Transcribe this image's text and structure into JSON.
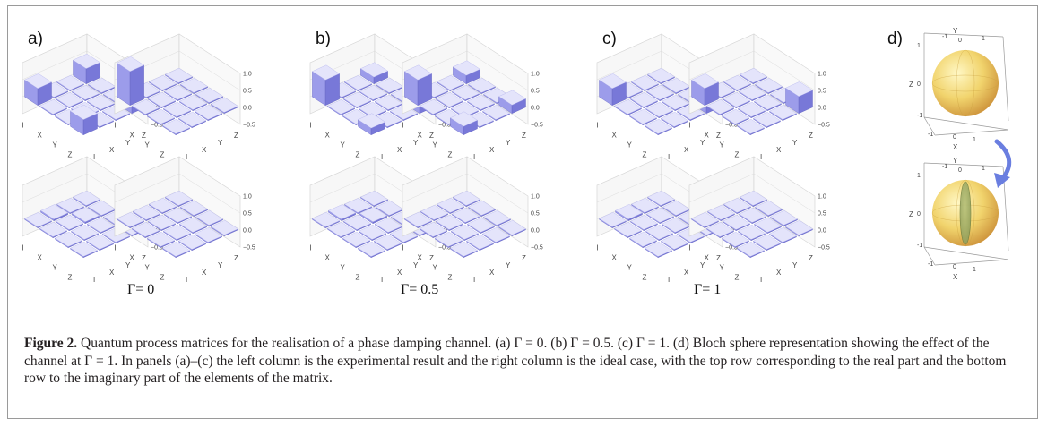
{
  "figure": {
    "panels": [
      {
        "label": "a)",
        "gamma": "Γ= 0"
      },
      {
        "label": "b)",
        "gamma": "Γ= 0.5"
      },
      {
        "label": "c)",
        "gamma": "Γ= 1"
      },
      {
        "label": "d)"
      }
    ],
    "matrix_axis_labels": [
      "I",
      "X",
      "Y",
      "Z"
    ],
    "z_ticks": [
      "1.0",
      "0.5",
      "0.0",
      "−0.5"
    ],
    "bloch": {
      "axis_labels": {
        "x": "X",
        "y": "Y",
        "z": "Z"
      },
      "ticks": [
        "-1",
        "0",
        "1"
      ]
    },
    "colors": {
      "bar_top": "#e4e4fb",
      "bar_side": "#7878d8",
      "bar_front": "#9c9cea",
      "sphere": "#f0d060",
      "ellipsoid": "#8a9a58",
      "arrow": "#6a7ee0"
    }
  },
  "chart_data": [
    {
      "type": "bar3d",
      "panel": "a",
      "row": "real",
      "column": "experimental",
      "gamma": 0,
      "basis": [
        "I",
        "X",
        "Y",
        "Z"
      ],
      "values": [
        [
          0.5,
          0.0,
          0.0,
          0.45
        ],
        [
          0.0,
          0.0,
          0.0,
          0.0
        ],
        [
          0.0,
          0.0,
          0.0,
          0.0
        ],
        [
          0.45,
          0.0,
          0.0,
          0.45
        ]
      ]
    },
    {
      "type": "bar3d",
      "panel": "a",
      "row": "real",
      "column": "ideal",
      "gamma": 0,
      "basis": [
        "I",
        "X",
        "Y",
        "Z"
      ],
      "values": [
        [
          1.0,
          0,
          0,
          0
        ],
        [
          0,
          0,
          0,
          0
        ],
        [
          0,
          0,
          0,
          0
        ],
        [
          0,
          0,
          0,
          0
        ]
      ]
    },
    {
      "type": "bar3d",
      "panel": "a",
      "row": "imaginary",
      "column": "experimental",
      "gamma": 0,
      "basis": [
        "I",
        "X",
        "Y",
        "Z"
      ],
      "values": [
        [
          0,
          0.05,
          0,
          0
        ],
        [
          0,
          0,
          0.05,
          0
        ],
        [
          0,
          0,
          0,
          0
        ],
        [
          0,
          0,
          0,
          0
        ]
      ]
    },
    {
      "type": "bar3d",
      "panel": "a",
      "row": "imaginary",
      "column": "ideal",
      "gamma": 0,
      "basis": [
        "I",
        "X",
        "Y",
        "Z"
      ],
      "values": [
        [
          0,
          0,
          0,
          0
        ],
        [
          0,
          0,
          0,
          0
        ],
        [
          0,
          0,
          0,
          0
        ],
        [
          0,
          0,
          0,
          0
        ]
      ]
    },
    {
      "type": "bar3d",
      "panel": "b",
      "row": "real",
      "column": "experimental",
      "gamma": 0.5,
      "basis": [
        "I",
        "X",
        "Y",
        "Z"
      ],
      "values": [
        [
          0.75,
          0,
          0,
          0.2
        ],
        [
          0,
          0,
          0,
          0
        ],
        [
          0,
          0,
          0,
          0
        ],
        [
          0.2,
          0,
          0,
          0.25
        ]
      ]
    },
    {
      "type": "bar3d",
      "panel": "b",
      "row": "real",
      "column": "ideal",
      "gamma": 0.5,
      "basis": [
        "I",
        "X",
        "Y",
        "Z"
      ],
      "values": [
        [
          0.75,
          0,
          0,
          0.25
        ],
        [
          0,
          0,
          0,
          0
        ],
        [
          0,
          0,
          0,
          0
        ],
        [
          0.25,
          0,
          0,
          0.25
        ]
      ]
    },
    {
      "type": "bar3d",
      "panel": "b",
      "row": "imaginary",
      "column": "experimental",
      "gamma": 0.5,
      "basis": [
        "I",
        "X",
        "Y",
        "Z"
      ],
      "values": [
        [
          0,
          0.05,
          0,
          0
        ],
        [
          0,
          0,
          0.05,
          0
        ],
        [
          0,
          0,
          0,
          0
        ],
        [
          0,
          0,
          0,
          0
        ]
      ]
    },
    {
      "type": "bar3d",
      "panel": "b",
      "row": "imaginary",
      "column": "ideal",
      "gamma": 0.5,
      "basis": [
        "I",
        "X",
        "Y",
        "Z"
      ],
      "values": [
        [
          0,
          0,
          0,
          0
        ],
        [
          0,
          0,
          0,
          0
        ],
        [
          0,
          0,
          0,
          0
        ],
        [
          0,
          0,
          0,
          0
        ]
      ]
    },
    {
      "type": "bar3d",
      "panel": "c",
      "row": "real",
      "column": "experimental",
      "gamma": 1,
      "basis": [
        "I",
        "X",
        "Y",
        "Z"
      ],
      "values": [
        [
          0.5,
          0,
          0,
          0
        ],
        [
          0,
          0,
          0,
          0
        ],
        [
          0,
          0,
          0,
          0
        ],
        [
          0,
          0,
          0,
          0.5
        ]
      ]
    },
    {
      "type": "bar3d",
      "panel": "c",
      "row": "real",
      "column": "ideal",
      "gamma": 1,
      "basis": [
        "I",
        "X",
        "Y",
        "Z"
      ],
      "values": [
        [
          0.5,
          0,
          0,
          0
        ],
        [
          0,
          0,
          0,
          0
        ],
        [
          0,
          0,
          0,
          0
        ],
        [
          0,
          0,
          0,
          0.5
        ]
      ]
    },
    {
      "type": "bar3d",
      "panel": "c",
      "row": "imaginary",
      "column": "experimental",
      "gamma": 1,
      "basis": [
        "I",
        "X",
        "Y",
        "Z"
      ],
      "values": [
        [
          0,
          0.05,
          0,
          0
        ],
        [
          0,
          0,
          0,
          0
        ],
        [
          0,
          0,
          0,
          0
        ],
        [
          0,
          0,
          0,
          0
        ]
      ]
    },
    {
      "type": "bar3d",
      "panel": "c",
      "row": "imaginary",
      "column": "ideal",
      "gamma": 1,
      "basis": [
        "I",
        "X",
        "Y",
        "Z"
      ],
      "values": [
        [
          0,
          0,
          0,
          0
        ],
        [
          0,
          0,
          0,
          0
        ],
        [
          0,
          0,
          0,
          0
        ],
        [
          0,
          0,
          0,
          0
        ]
      ]
    }
  ],
  "caption": {
    "label": "Figure 2.",
    "text": " Quantum process matrices for the realisation of a phase damping channel. (a) Γ = 0. (b) Γ = 0.5. (c) Γ = 1. (d) Bloch sphere representation showing the effect of the channel at Γ = 1. In panels (a)–(c) the left column is the experimental result and the right column is the ideal case, with the top row corresponding to the real part and the bottom row to the imaginary part of the elements of the matrix."
  }
}
